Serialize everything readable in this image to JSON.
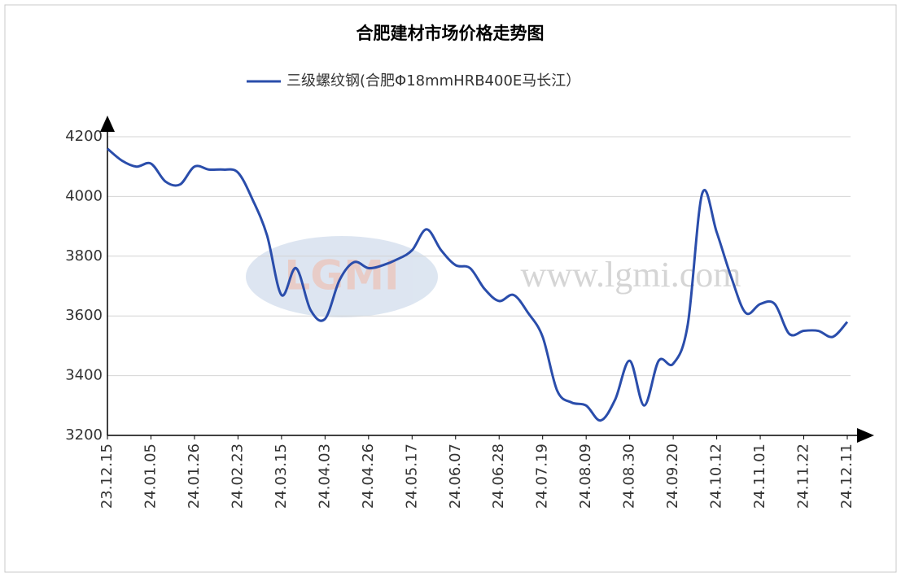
{
  "chart_data": {
    "type": "line",
    "title": "合肥建材市场价格走势图",
    "watermark": {
      "logo": "LGMI",
      "url": "www.lgmi.com"
    },
    "categories": [
      "23.12.15",
      null,
      null,
      "24.01.05",
      null,
      null,
      "24.01.26",
      null,
      null,
      "24.02.23",
      null,
      null,
      "24.03.15",
      null,
      null,
      "24.04.03",
      null,
      null,
      "24.04.26",
      null,
      null,
      "24.05.17",
      null,
      null,
      "24.06.07",
      null,
      null,
      "24.06.28",
      null,
      null,
      "24.07.19",
      null,
      null,
      "24.08.09",
      null,
      null,
      "24.08.30",
      null,
      null,
      "24.09.20",
      null,
      null,
      "24.10.12",
      null,
      null,
      "24.11.01",
      null,
      null,
      "24.11.22",
      null,
      null,
      "24.12.11"
    ],
    "series": [
      {
        "name": "三级螺纹钢(合肥Φ18mmHRB400E马长江）",
        "color": "#2a4dab",
        "values": [
          4160,
          4120,
          4100,
          4110,
          4050,
          4040,
          4100,
          4090,
          4090,
          4080,
          3990,
          3870,
          3670,
          3760,
          3620,
          3590,
          3720,
          3780,
          3760,
          3770,
          3790,
          3820,
          3890,
          3820,
          3770,
          3760,
          3690,
          3650,
          3670,
          3610,
          3530,
          3350,
          3310,
          3300,
          3250,
          3320,
          3450,
          3300,
          3450,
          3440,
          3570,
          4010,
          3880,
          3730,
          3610,
          3640,
          3640,
          3540,
          3550,
          3550,
          3530,
          3580
        ]
      }
    ],
    "ylim": [
      3200,
      4200
    ],
    "yticks": [
      3200,
      3400,
      3600,
      3800,
      4000,
      4200
    ],
    "grid": true
  }
}
